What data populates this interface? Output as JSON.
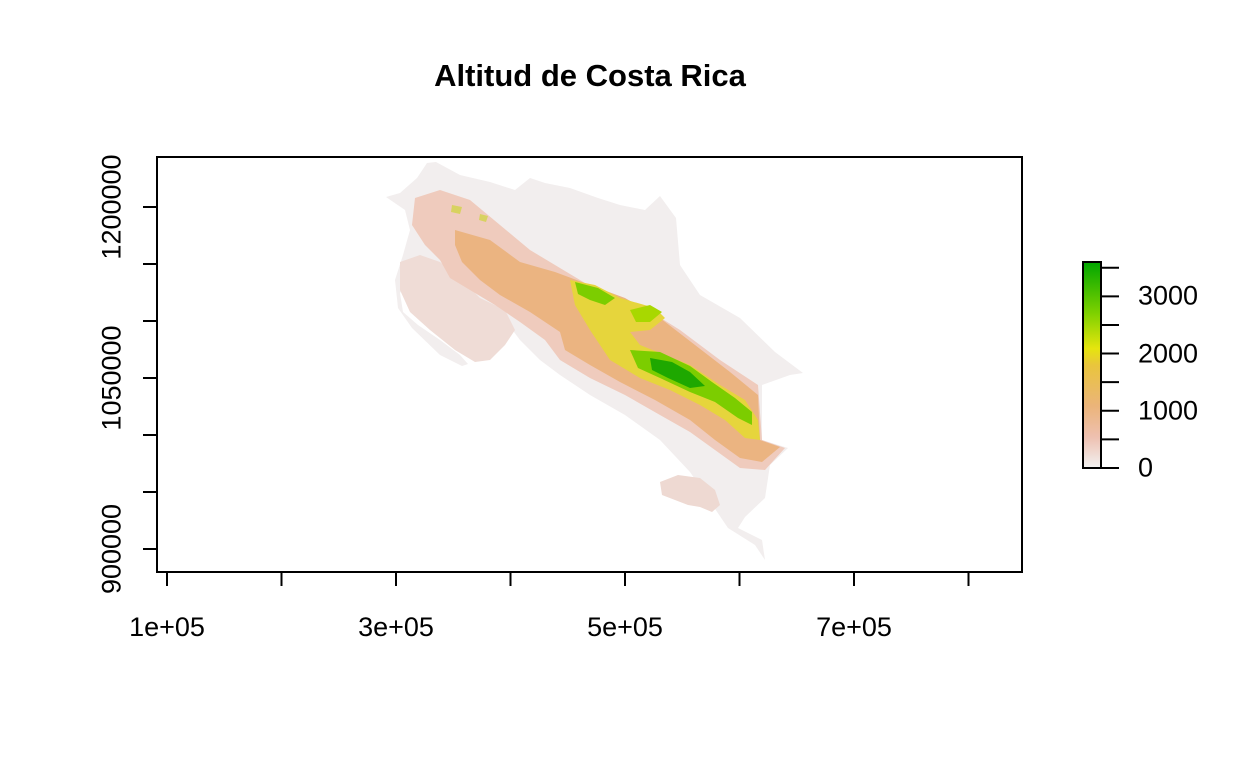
{
  "map": {
    "title": "Altitud de Costa Rica",
    "x_ticks": [
      {
        "value": 100000,
        "label": "1e+05"
      },
      {
        "value": 300000,
        "label": "3e+05"
      },
      {
        "value": 500000,
        "label": "5e+05"
      },
      {
        "value": 700000,
        "label": "7e+05"
      }
    ],
    "x_minor_ticks": [
      200000,
      400000,
      600000,
      800000
    ],
    "y_ticks": [
      {
        "value": 900000,
        "label": "900000"
      },
      {
        "value": 1050000,
        "label": "1050000"
      },
      {
        "value": 1200000,
        "label": "1200000"
      }
    ],
    "y_minor_ticks": [
      950000,
      1000000,
      1100000,
      1150000
    ],
    "legend": {
      "ticks": [
        {
          "value": 0,
          "label": "0"
        },
        {
          "value": 1000,
          "label": "1000"
        },
        {
          "value": 2000,
          "label": "2000"
        },
        {
          "value": 3000,
          "label": "3000"
        }
      ],
      "range": [
        0,
        3600
      ],
      "colors": [
        "#f2f2f2",
        "#eec0b0",
        "#ebb47a",
        "#e9c53c",
        "#e6e50e",
        "#7fd100",
        "#00a600"
      ]
    },
    "colors": {
      "lowland": "#f2eeee",
      "foothill": "#efcbbd",
      "mid": "#ebb481",
      "high": "#e6d53c",
      "peak": "#1ea800"
    }
  }
}
